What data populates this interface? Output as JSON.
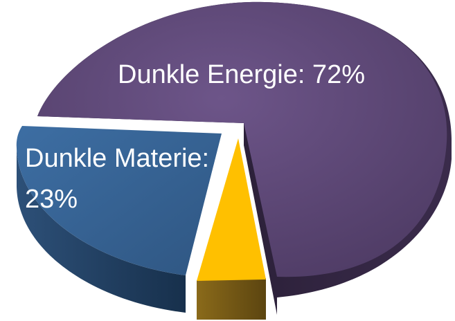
{
  "chart_data": {
    "type": "pie",
    "style": "3d-exploded",
    "slices": [
      {
        "label": "Dunkle Energie: 72%",
        "value": 72,
        "color": "#624b7a",
        "side_color": "#2a1f35"
      },
      {
        "label": "Dunkle Materie: 23%",
        "value": 23,
        "color": "#386494",
        "side_color": "#1a3350"
      },
      {
        "label": "",
        "value": 5,
        "color": "#ffc000",
        "side_color": "#7a5a12"
      }
    ],
    "label_lines": {
      "energy": [
        "Dunkle Energie: 72%"
      ],
      "matter": [
        "Dunkle Materie:",
        "23%"
      ]
    }
  }
}
